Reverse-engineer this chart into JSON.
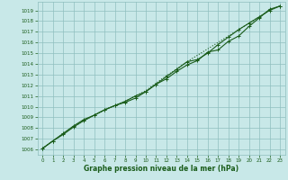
{
  "xlabel": "Graphe pression niveau de la mer (hPa)",
  "ylim": [
    1005.5,
    1019.8
  ],
  "xlim": [
    -0.5,
    23.5
  ],
  "yticks": [
    1006,
    1007,
    1008,
    1009,
    1010,
    1011,
    1012,
    1013,
    1014,
    1015,
    1016,
    1017,
    1018,
    1019
  ],
  "xticks": [
    0,
    1,
    2,
    3,
    4,
    5,
    6,
    7,
    8,
    9,
    10,
    11,
    12,
    13,
    14,
    15,
    16,
    17,
    18,
    19,
    20,
    21,
    22,
    23
  ],
  "bg_color": "#c8e8e8",
  "grid_color": "#8fbfbf",
  "line_color": "#1a5c1a",
  "line1_x": [
    0,
    1,
    2,
    3,
    4,
    5,
    6,
    7,
    8,
    9,
    10,
    11,
    12,
    13,
    14,
    15,
    16,
    17,
    18,
    19,
    20,
    21,
    22,
    23
  ],
  "line1_y": [
    1006.1,
    1006.8,
    1007.5,
    1008.2,
    1008.8,
    1009.2,
    1009.7,
    1010.1,
    1010.5,
    1011.0,
    1011.4,
    1012.1,
    1012.6,
    1013.3,
    1013.9,
    1014.3,
    1015.1,
    1015.3,
    1016.1,
    1016.6,
    1017.5,
    1018.3,
    1019.1,
    1019.4
  ],
  "line2_x": [
    0,
    1,
    2,
    3,
    4,
    5,
    6,
    7,
    8,
    9,
    10,
    11,
    12,
    13,
    14,
    15,
    16,
    17,
    18,
    19,
    20,
    21,
    22,
    23
  ],
  "line2_y": [
    1006.1,
    1006.8,
    1007.4,
    1008.1,
    1008.7,
    1009.2,
    1009.7,
    1010.1,
    1010.4,
    1010.8,
    1011.4,
    1012.1,
    1012.8,
    1013.5,
    1014.2,
    1014.4,
    1015.0,
    1015.8,
    1016.5,
    1017.2,
    1017.8,
    1018.4,
    1019.0,
    1019.4
  ],
  "line3_x": [
    0,
    1,
    2,
    3,
    4,
    5,
    6,
    7,
    8,
    9,
    10,
    11,
    12,
    13,
    14,
    15,
    16,
    17,
    18,
    19,
    20,
    21,
    22,
    23
  ],
  "line3_y": [
    1006.1,
    1006.8,
    1007.5,
    1008.1,
    1008.7,
    1009.2,
    1009.7,
    1010.1,
    1010.5,
    1011.0,
    1011.5,
    1012.2,
    1012.9,
    1013.5,
    1014.2,
    1014.8,
    1015.4,
    1016.0,
    1016.6,
    1017.2,
    1017.8,
    1018.4,
    1019.0,
    1019.4
  ]
}
